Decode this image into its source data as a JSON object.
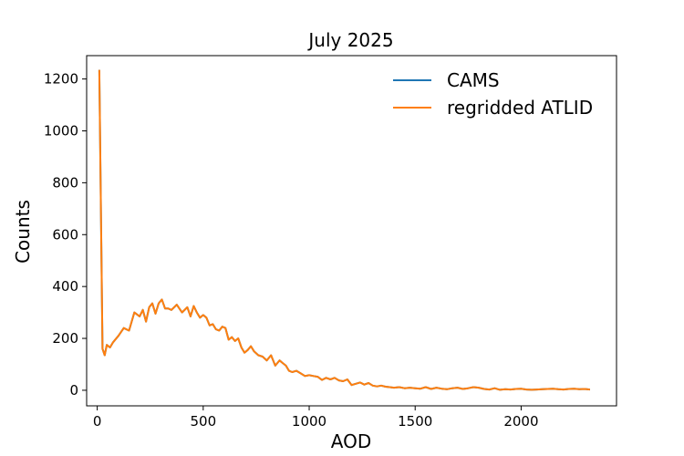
{
  "chart_data": {
    "type": "line",
    "title": "July 2025",
    "xlabel": "AOD",
    "ylabel": "Counts",
    "xlim": [
      -50,
      2450
    ],
    "ylim": [
      -60,
      1290
    ],
    "xticks": [
      0,
      500,
      1000,
      1500,
      2000
    ],
    "yticks": [
      0,
      200,
      400,
      600,
      800,
      1000,
      1200
    ],
    "grid": false,
    "legend_position": "top-right",
    "series": [
      {
        "name": "CAMS",
        "color": "#1f77b4",
        "x": [
          10,
          25,
          35,
          45,
          60,
          75,
          100,
          125,
          150,
          175,
          200,
          215,
          230,
          245,
          260,
          275,
          290,
          305,
          320,
          335,
          350,
          375,
          400,
          425,
          440,
          455,
          470,
          485,
          500,
          515,
          530,
          545,
          560,
          575,
          590,
          605,
          620,
          635,
          650,
          665,
          680,
          695,
          710,
          725,
          740,
          760,
          780,
          800,
          820,
          840,
          860,
          875,
          890,
          905,
          920,
          940,
          960,
          980,
          1000,
          1020,
          1040,
          1060,
          1080,
          1100,
          1120,
          1140,
          1160,
          1180,
          1200,
          1220,
          1240,
          1260,
          1280,
          1300,
          1320,
          1340,
          1360,
          1380,
          1400,
          1425,
          1450,
          1475,
          1500,
          1525,
          1550,
          1575,
          1600,
          1625,
          1650,
          1675,
          1700,
          1725,
          1750,
          1775,
          1800,
          1825,
          1850,
          1875,
          1900,
          1925,
          1950,
          1975,
          2000,
          2025,
          2050,
          2075,
          2100,
          2125,
          2150,
          2175,
          2200,
          2225,
          2250,
          2275,
          2300,
          2325
        ],
        "y": [
          1235,
          160,
          135,
          175,
          165,
          185,
          210,
          240,
          230,
          300,
          285,
          310,
          265,
          320,
          335,
          295,
          335,
          350,
          315,
          315,
          310,
          330,
          300,
          320,
          285,
          325,
          300,
          280,
          290,
          280,
          250,
          255,
          235,
          230,
          245,
          240,
          195,
          205,
          190,
          200,
          165,
          145,
          155,
          170,
          150,
          135,
          130,
          115,
          135,
          95,
          115,
          105,
          95,
          75,
          70,
          75,
          65,
          55,
          58,
          55,
          52,
          40,
          48,
          42,
          48,
          38,
          35,
          42,
          20,
          25,
          30,
          22,
          28,
          18,
          15,
          18,
          14,
          12,
          10,
          12,
          8,
          10,
          8,
          6,
          12,
          5,
          10,
          6,
          4,
          8,
          10,
          5,
          8,
          12,
          10,
          5,
          3,
          8,
          2,
          4,
          3,
          5,
          6,
          3,
          2,
          3,
          4,
          5,
          6,
          4,
          3,
          5,
          6,
          4,
          5,
          3
        ]
      },
      {
        "name": "regridded ATLID",
        "color": "#ff7f0e",
        "x": [
          10,
          25,
          35,
          45,
          60,
          75,
          100,
          125,
          150,
          175,
          200,
          215,
          230,
          245,
          260,
          275,
          290,
          305,
          320,
          335,
          350,
          375,
          400,
          425,
          440,
          455,
          470,
          485,
          500,
          515,
          530,
          545,
          560,
          575,
          590,
          605,
          620,
          635,
          650,
          665,
          680,
          695,
          710,
          725,
          740,
          760,
          780,
          800,
          820,
          840,
          860,
          875,
          890,
          905,
          920,
          940,
          960,
          980,
          1000,
          1020,
          1040,
          1060,
          1080,
          1100,
          1120,
          1140,
          1160,
          1180,
          1200,
          1220,
          1240,
          1260,
          1280,
          1300,
          1320,
          1340,
          1360,
          1380,
          1400,
          1425,
          1450,
          1475,
          1500,
          1525,
          1550,
          1575,
          1600,
          1625,
          1650,
          1675,
          1700,
          1725,
          1750,
          1775,
          1800,
          1825,
          1850,
          1875,
          1900,
          1925,
          1950,
          1975,
          2000,
          2025,
          2050,
          2075,
          2100,
          2125,
          2150,
          2175,
          2200,
          2225,
          2250,
          2275,
          2300,
          2325
        ],
        "y": [
          1235,
          160,
          135,
          175,
          165,
          185,
          210,
          240,
          230,
          300,
          285,
          310,
          265,
          320,
          335,
          295,
          335,
          350,
          315,
          315,
          310,
          330,
          300,
          320,
          285,
          325,
          300,
          280,
          290,
          280,
          250,
          255,
          235,
          230,
          245,
          240,
          195,
          205,
          190,
          200,
          165,
          145,
          155,
          170,
          150,
          135,
          130,
          115,
          135,
          95,
          115,
          105,
          95,
          75,
          70,
          75,
          65,
          55,
          58,
          55,
          52,
          40,
          48,
          42,
          48,
          38,
          35,
          42,
          20,
          25,
          30,
          22,
          28,
          18,
          15,
          18,
          14,
          12,
          10,
          12,
          8,
          10,
          8,
          6,
          12,
          5,
          10,
          6,
          4,
          8,
          10,
          5,
          8,
          12,
          10,
          5,
          3,
          8,
          2,
          4,
          3,
          5,
          6,
          3,
          2,
          3,
          4,
          5,
          6,
          4,
          3,
          5,
          6,
          4,
          5,
          3
        ]
      }
    ]
  }
}
